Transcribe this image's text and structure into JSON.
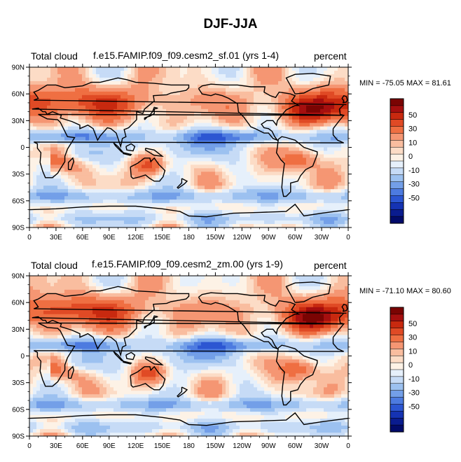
{
  "main_title": "DJF-JJA",
  "panels": [
    {
      "variable": "Total cloud",
      "case": "f.e15.FAMIP.f09_f09.cesm2_sf.01 (yrs 1-4)",
      "units": "percent",
      "stats": "MIN = -75.05 MAX =  81.61"
    },
    {
      "variable": "Total cloud",
      "case": "f.e15.FAMIP.f09_f09.cesm2_zm.00 (yrs 1-9)",
      "units": "percent",
      "stats": "MIN = -71.10 MAX =  80.60"
    }
  ],
  "axes": {
    "lat_labels": [
      "90N",
      "60N",
      "30N",
      "0",
      "30S",
      "60S",
      "90S"
    ],
    "lon_labels": [
      "0",
      "30E",
      "60E",
      "90E",
      "120E",
      "150E",
      "180",
      "150W",
      "120W",
      "90W",
      "60W",
      "30W",
      "0"
    ]
  },
  "colorbar": {
    "labels": [
      "50",
      "30",
      "10",
      "0",
      "-10",
      "-30",
      "-50"
    ],
    "colors": [
      "#7a0403",
      "#a50f0f",
      "#c8290f",
      "#e04a25",
      "#ef6f42",
      "#f59673",
      "#f9bd9f",
      "#fcdcc6",
      "#fdf2e6",
      "#e6f0fb",
      "#c6dbf6",
      "#9cc1f0",
      "#739fe8",
      "#4d7be0",
      "#2c56d2",
      "#1533b3",
      "#0a1c8f",
      "#020b6a"
    ]
  }
}
